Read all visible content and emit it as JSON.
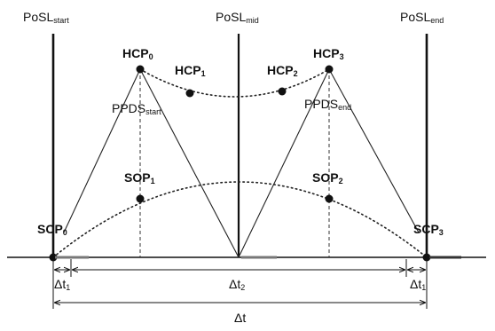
{
  "labels": {
    "posl_start": {
      "main": "PoSL",
      "sub": "start"
    },
    "posl_mid": {
      "main": "PoSL",
      "sub": "mid"
    },
    "posl_end": {
      "main": "PoSL",
      "sub": "end"
    },
    "hcp0": {
      "main": "HCP",
      "sub": "0"
    },
    "hcp1": {
      "main": "HCP",
      "sub": "1"
    },
    "hcp2": {
      "main": "HCP",
      "sub": "2"
    },
    "hcp3": {
      "main": "HCP",
      "sub": "3"
    },
    "ppds_start": {
      "main": "PPDS",
      "sub": "start"
    },
    "ppds_end": {
      "main": "PPDS",
      "sub": "end"
    },
    "sop1": {
      "main": "SOP",
      "sub": "1"
    },
    "sop2": {
      "main": "SOP",
      "sub": "2"
    },
    "scp0": {
      "main": "SCP",
      "sub": "0"
    },
    "scp3": {
      "main": "SCP",
      "sub": "3"
    },
    "dt1_left": {
      "main": "Δt",
      "sub": "1"
    },
    "dt2": {
      "main": "Δt",
      "sub": "2"
    },
    "dt1_right": {
      "main": "Δt",
      "sub": "1"
    },
    "dt": {
      "main": "Δt",
      "sub": ""
    }
  }
}
